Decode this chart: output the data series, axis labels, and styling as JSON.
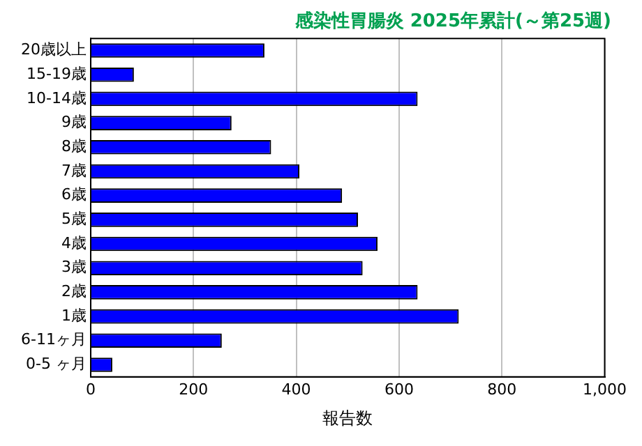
{
  "chart_data": {
    "type": "bar",
    "orientation": "horizontal",
    "title": "感染性胃腸炎 2025年累計(～第25週)",
    "xlabel": "報告数",
    "categories": [
      "20歳以上",
      "15-19歳",
      "10-14歳",
      "9歳",
      "8歳",
      "7歳",
      "6歳",
      "5歳",
      "4歳",
      "3歳",
      "2歳",
      "1歳",
      "6-11ヶ月",
      "0-5 ヶ月"
    ],
    "values": [
      338,
      84,
      636,
      274,
      351,
      406,
      489,
      520,
      558,
      529,
      636,
      716,
      255,
      42
    ],
    "color": "#0000ff",
    "xlim": [
      0,
      1000
    ],
    "xticks": [
      0,
      200,
      400,
      600,
      800,
      {
        "value": 1000,
        "label": "1,000"
      }
    ],
    "grid": "x",
    "legend": false
  }
}
